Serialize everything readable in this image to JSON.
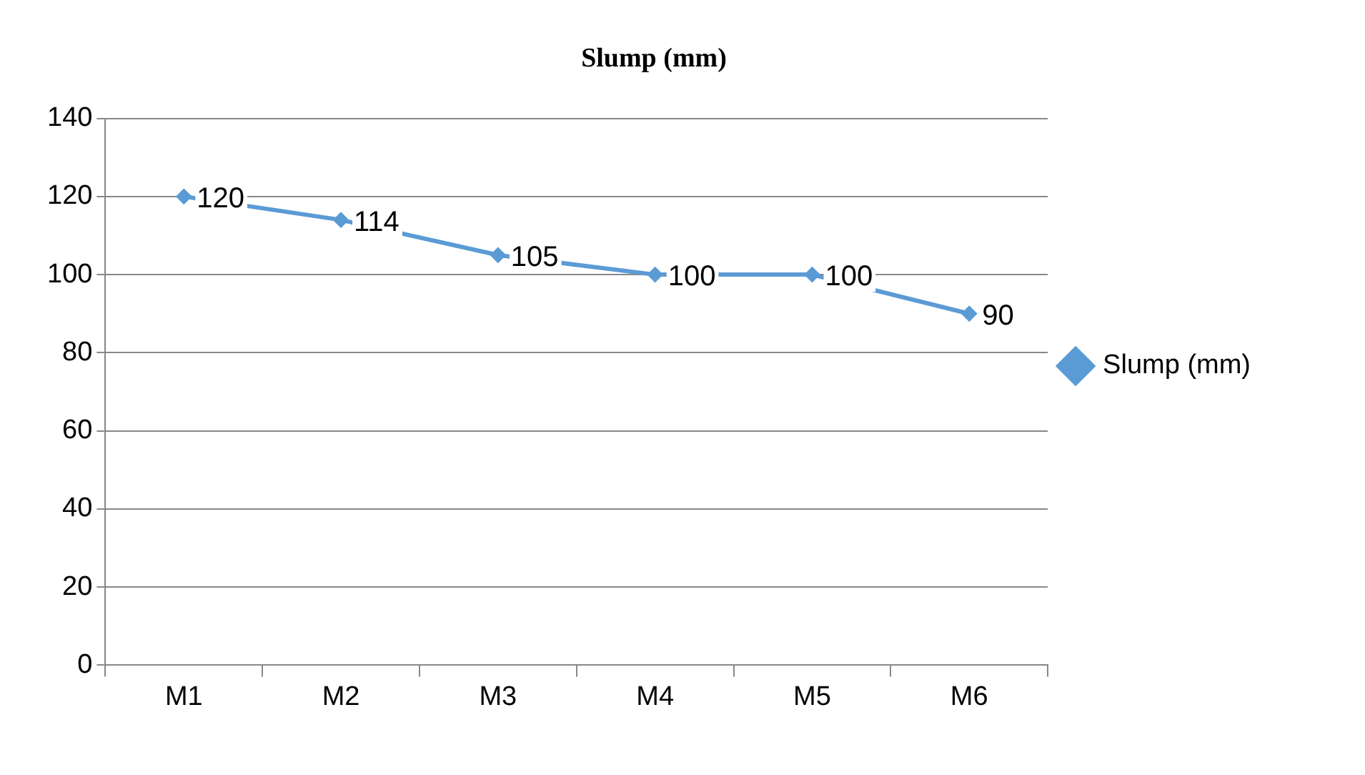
{
  "chart_data": {
    "type": "line",
    "title": "Slump (mm)",
    "categories": [
      "M1",
      "M2",
      "M3",
      "M4",
      "M5",
      "M6"
    ],
    "series": [
      {
        "name": "Slump (mm)",
        "color": "#5b9bd5",
        "values": [
          120,
          114,
          105,
          100,
          100,
          90
        ]
      }
    ],
    "ylim": [
      0,
      140
    ],
    "yticks": [
      0,
      20,
      40,
      60,
      80,
      100,
      120,
      140
    ],
    "grid": "y",
    "legend": "right",
    "marker": "diamond",
    "line_style": "solid",
    "data_labels": true
  }
}
